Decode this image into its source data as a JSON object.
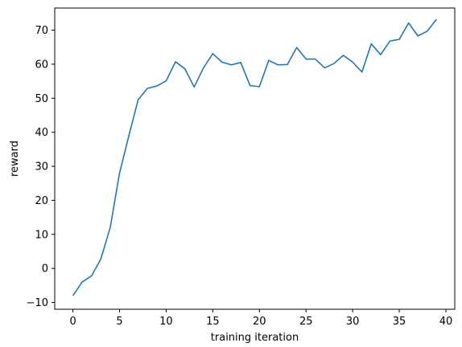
{
  "chart_data": {
    "type": "line",
    "xlabel": "training iteration",
    "ylabel": "reward",
    "xlim": [
      -1.95,
      40.95
    ],
    "ylim": [
      -12.0,
      76.5
    ],
    "xticks": [
      0,
      5,
      10,
      15,
      20,
      25,
      30,
      35,
      40
    ],
    "yticks": [
      -10,
      0,
      10,
      20,
      30,
      40,
      50,
      60,
      70
    ],
    "grid": false,
    "line_color": "#1f77b4",
    "series": [
      {
        "x": [
          0,
          1,
          2,
          3,
          4,
          5,
          6,
          7,
          8,
          9,
          10,
          11,
          12,
          13,
          14,
          15,
          16,
          17,
          18,
          19,
          20,
          21,
          22,
          23,
          24,
          25,
          26,
          27,
          28,
          29,
          30,
          31,
          32,
          33,
          34,
          35,
          36,
          37,
          38,
          39
        ],
        "values": [
          -8.0,
          -4.0,
          -2.2,
          2.8,
          12.0,
          28.0,
          39.0,
          49.6,
          52.9,
          53.6,
          55.1,
          60.7,
          58.7,
          53.3,
          58.9,
          63.1,
          60.6,
          59.8,
          60.5,
          53.7,
          53.4,
          61.1,
          59.8,
          59.9,
          64.9,
          61.5,
          61.5,
          58.9,
          60.2,
          62.6,
          60.6,
          57.7,
          66.0,
          62.8,
          66.8,
          67.3,
          72.1,
          68.3,
          69.7,
          73.2
        ]
      }
    ]
  }
}
